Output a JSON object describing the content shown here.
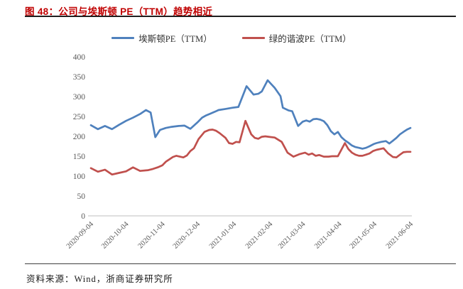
{
  "header": {
    "title": "图  48：公司与埃斯顿 PE（TTM）趋势相近"
  },
  "footer": {
    "source": "资料来源：Wind，浙商证券研究所"
  },
  "colors": {
    "title_red": "#c00000",
    "estun_blue": "#4F81BD",
    "leader_red": "#C0504D",
    "axis_line": "#bfbfbf",
    "axis_text": "#595959"
  },
  "chart_data": {
    "type": "line",
    "title": "公司与埃斯顿 PE（TTM）趋势相近",
    "xlabel": "",
    "ylabel": "",
    "grid": false,
    "legend_position": "top-center",
    "x_unit": "days since 2020-09-04",
    "x_range_days": [
      0,
      273
    ],
    "ylim": [
      0,
      400
    ],
    "y_ticks": [
      0,
      50,
      100,
      150,
      200,
      250,
      300,
      350,
      400
    ],
    "x_ticks": {
      "labels": [
        "2020-09-04",
        "2020-10-04",
        "2020-11-04",
        "2020-12-04",
        "2021-01-04",
        "2021-02-04",
        "2021-03-04",
        "2021-04-04",
        "2021-05-04",
        "2021-06-04"
      ],
      "days": [
        0,
        30,
        61,
        91,
        122,
        153,
        181,
        212,
        242,
        273
      ]
    },
    "series": [
      {
        "name": "埃斯顿PE（TTM）",
        "color": "#4F81BD",
        "points": [
          [
            0,
            228
          ],
          [
            6,
            218
          ],
          [
            12,
            226
          ],
          [
            18,
            218
          ],
          [
            24,
            229
          ],
          [
            30,
            239
          ],
          [
            36,
            247
          ],
          [
            42,
            256
          ],
          [
            47,
            266
          ],
          [
            51,
            260
          ],
          [
            55,
            198
          ],
          [
            59,
            216
          ],
          [
            64,
            221
          ],
          [
            69,
            224
          ],
          [
            75,
            226
          ],
          [
            80,
            227
          ],
          [
            85,
            219
          ],
          [
            91,
            235
          ],
          [
            95,
            247
          ],
          [
            98,
            252
          ],
          [
            102,
            257
          ],
          [
            106,
            262
          ],
          [
            109,
            266
          ],
          [
            115,
            269
          ],
          [
            121,
            272
          ],
          [
            126,
            274
          ],
          [
            133,
            326
          ],
          [
            139,
            305
          ],
          [
            143,
            307
          ],
          [
            146,
            313
          ],
          [
            151,
            341
          ],
          [
            157,
            322
          ],
          [
            162,
            301
          ],
          [
            164,
            272
          ],
          [
            169,
            265
          ],
          [
            172,
            263
          ],
          [
            177,
            226
          ],
          [
            181,
            237
          ],
          [
            184,
            240
          ],
          [
            187,
            237
          ],
          [
            190,
            243
          ],
          [
            193,
            244
          ],
          [
            196,
            242
          ],
          [
            199,
            238
          ],
          [
            202,
            228
          ],
          [
            205,
            213
          ],
          [
            208,
            205
          ],
          [
            211,
            211
          ],
          [
            214,
            198
          ],
          [
            217,
            190
          ],
          [
            220,
            184
          ],
          [
            223,
            177
          ],
          [
            226,
            173
          ],
          [
            229,
            171
          ],
          [
            232,
            169
          ],
          [
            235,
            171
          ],
          [
            238,
            175
          ],
          [
            242,
            181
          ],
          [
            244,
            183
          ],
          [
            248,
            186
          ],
          [
            252,
            188
          ],
          [
            255,
            182
          ],
          [
            258,
            189
          ],
          [
            261,
            196
          ],
          [
            264,
            205
          ],
          [
            267,
            211
          ],
          [
            270,
            217
          ],
          [
            273,
            221
          ]
        ]
      },
      {
        "name": "绿的谐波PE（TTM）",
        "color": "#C0504D",
        "points": [
          [
            0,
            120
          ],
          [
            6,
            111
          ],
          [
            12,
            116
          ],
          [
            18,
            104
          ],
          [
            24,
            108
          ],
          [
            30,
            112
          ],
          [
            36,
            122
          ],
          [
            42,
            113
          ],
          [
            49,
            115
          ],
          [
            53,
            118
          ],
          [
            57,
            122
          ],
          [
            61,
            127
          ],
          [
            64,
            136
          ],
          [
            67,
            142
          ],
          [
            70,
            148
          ],
          [
            73,
            151
          ],
          [
            76,
            149
          ],
          [
            79,
            147
          ],
          [
            82,
            152
          ],
          [
            85,
            163
          ],
          [
            88,
            170
          ],
          [
            92,
            193
          ],
          [
            97,
            211
          ],
          [
            101,
            216
          ],
          [
            104,
            217
          ],
          [
            107,
            214
          ],
          [
            110,
            208
          ],
          [
            115,
            196
          ],
          [
            118,
            183
          ],
          [
            121,
            181
          ],
          [
            124,
            186
          ],
          [
            127,
            185
          ],
          [
            132,
            239
          ],
          [
            137,
            205
          ],
          [
            140,
            196
          ],
          [
            143,
            194
          ],
          [
            146,
            199
          ],
          [
            149,
            200
          ],
          [
            157,
            197
          ],
          [
            163,
            186
          ],
          [
            168,
            159
          ],
          [
            173,
            149
          ],
          [
            178,
            155
          ],
          [
            183,
            159
          ],
          [
            186,
            154
          ],
          [
            189,
            157
          ],
          [
            192,
            151
          ],
          [
            195,
            153
          ],
          [
            199,
            149
          ],
          [
            203,
            149
          ],
          [
            206,
            150
          ],
          [
            211,
            150
          ],
          [
            217,
            183
          ],
          [
            220,
            168
          ],
          [
            223,
            159
          ],
          [
            226,
            154
          ],
          [
            229,
            151
          ],
          [
            232,
            151
          ],
          [
            235,
            154
          ],
          [
            238,
            157
          ],
          [
            241,
            163
          ],
          [
            244,
            166
          ],
          [
            250,
            170
          ],
          [
            254,
            157
          ],
          [
            258,
            148
          ],
          [
            261,
            147
          ],
          [
            264,
            154
          ],
          [
            267,
            160
          ],
          [
            270,
            161
          ],
          [
            273,
            161
          ]
        ]
      }
    ]
  }
}
